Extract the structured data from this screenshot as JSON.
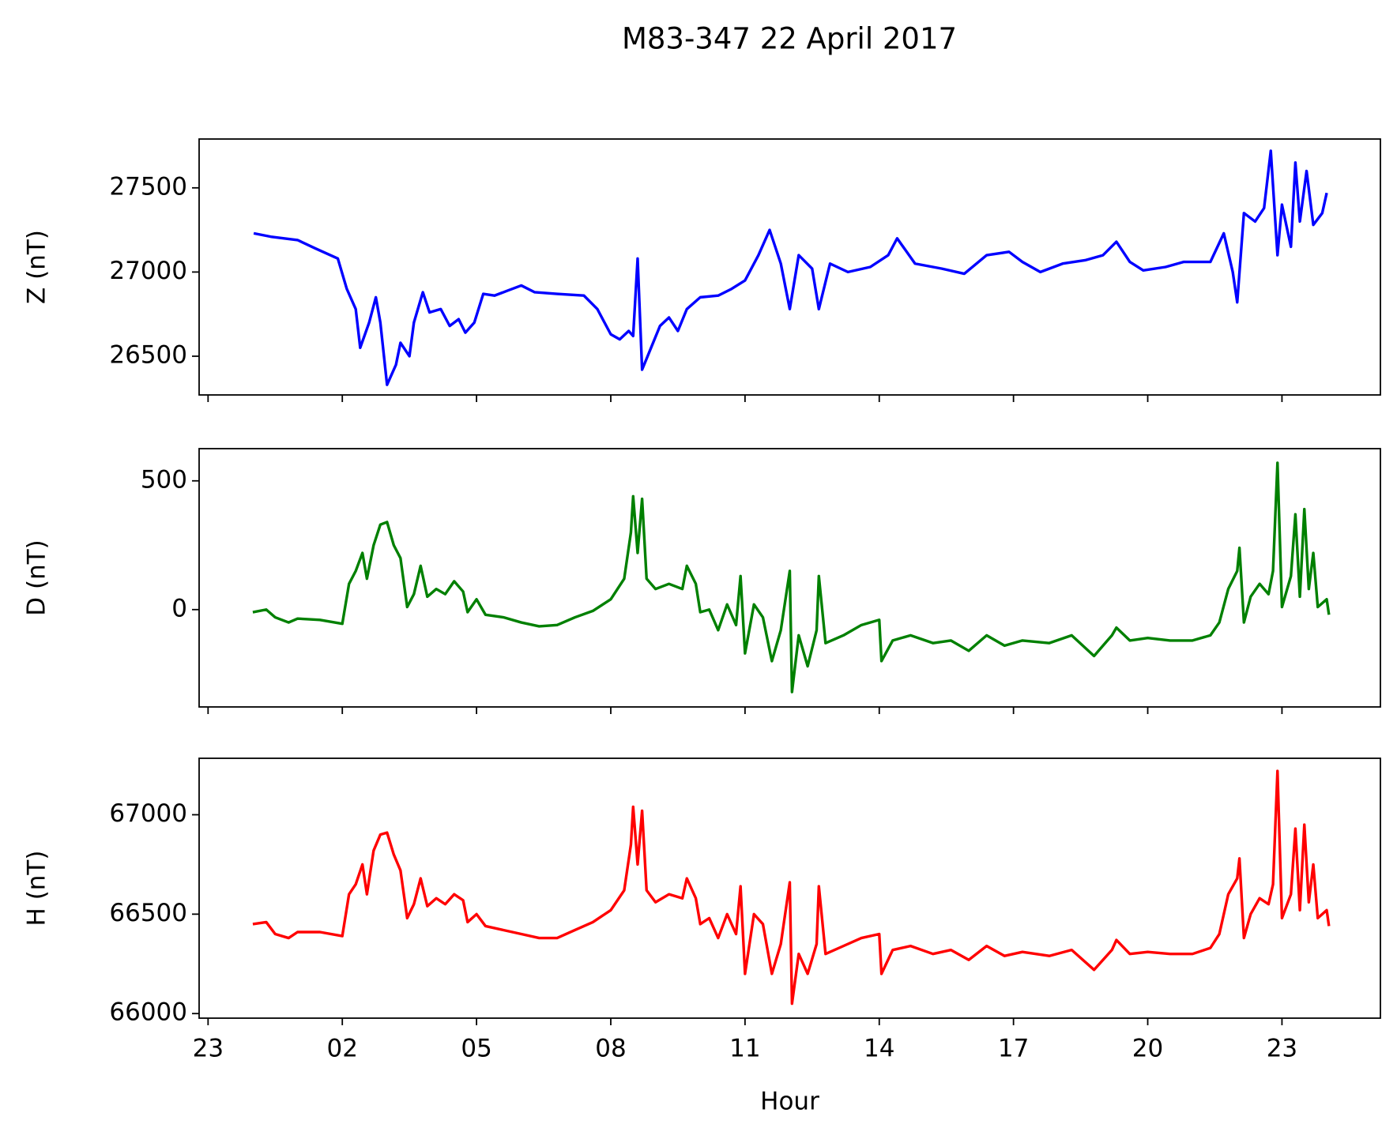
{
  "title": "M83-347 22 April 2017",
  "chart_data": [
    {
      "type": "line",
      "ylabel": "Z (nT)",
      "color": "#0000ff",
      "xlim": [
        -1.2,
        25.2
      ],
      "xticks": [
        {
          "value": -1,
          "label": "23"
        },
        {
          "value": 2,
          "label": "02"
        },
        {
          "value": 5,
          "label": "05"
        },
        {
          "value": 8,
          "label": "08"
        },
        {
          "value": 11,
          "label": "11"
        },
        {
          "value": 14,
          "label": "14"
        },
        {
          "value": 17,
          "label": "17"
        },
        {
          "value": 20,
          "label": "20"
        },
        23
      ],
      "ylim": [
        26270,
        27790
      ],
      "yticks": [
        26500,
        27000,
        27500
      ],
      "x": [
        0.02,
        0.4,
        1.0,
        1.4,
        1.9,
        2.1,
        2.3,
        2.4,
        2.6,
        2.75,
        2.85,
        3.0,
        3.2,
        3.3,
        3.5,
        3.6,
        3.8,
        3.95,
        4.2,
        4.4,
        4.6,
        4.75,
        4.95,
        5.15,
        5.4,
        5.7,
        6.0,
        6.3,
        6.8,
        7.4,
        7.7,
        8.0,
        8.2,
        8.4,
        8.5,
        8.6,
        8.7,
        8.9,
        9.1,
        9.3,
        9.5,
        9.7,
        10.0,
        10.4,
        10.7,
        11.0,
        11.3,
        11.55,
        11.8,
        12.0,
        12.2,
        12.5,
        12.65,
        12.9,
        13.3,
        13.8,
        14.2,
        14.4,
        14.8,
        15.4,
        15.9,
        16.4,
        16.9,
        17.2,
        17.6,
        18.1,
        18.6,
        19.0,
        19.3,
        19.6,
        19.9,
        20.4,
        20.8,
        21.4,
        21.7,
        21.9,
        22.0,
        22.15,
        22.4,
        22.6,
        22.75,
        22.9,
        23.0,
        23.2,
        23.3,
        23.4,
        23.55,
        23.7,
        23.9,
        24.0
      ],
      "values": [
        27230,
        27210,
        27190,
        27140,
        27080,
        26900,
        26780,
        26550,
        26700,
        26850,
        26700,
        26330,
        26450,
        26580,
        26500,
        26700,
        26880,
        26760,
        26780,
        26680,
        26720,
        26640,
        26700,
        26870,
        26860,
        26890,
        26920,
        26880,
        26870,
        26860,
        26780,
        26630,
        26600,
        26650,
        26620,
        27080,
        26420,
        26550,
        26680,
        26730,
        26650,
        26780,
        26850,
        26860,
        26900,
        26950,
        27100,
        27250,
        27050,
        26780,
        27100,
        27020,
        26780,
        27050,
        27000,
        27030,
        27100,
        27200,
        27050,
        27020,
        26990,
        27100,
        27120,
        27060,
        27000,
        27050,
        27070,
        27100,
        27180,
        27060,
        27010,
        27030,
        27060,
        27060,
        27230,
        27000,
        26820,
        27350,
        27300,
        27380,
        27720,
        27100,
        27400,
        27150,
        27650,
        27300,
        27600,
        27280,
        27350,
        27470
      ]
    },
    {
      "type": "line",
      "ylabel": "D (nT)",
      "color": "#008000",
      "xlim": [
        -1.2,
        25.2
      ],
      "xticks": [
        {
          "value": -1,
          "label": "23"
        },
        {
          "value": 2,
          "label": "02"
        },
        {
          "value": 5,
          "label": "05"
        },
        {
          "value": 8,
          "label": "08"
        },
        {
          "value": 11,
          "label": "11"
        },
        {
          "value": 14,
          "label": "14"
        },
        {
          "value": 17,
          "label": "17"
        },
        {
          "value": 20,
          "label": "20"
        },
        23
      ],
      "ylim": [
        -378,
        625
      ],
      "yticks": [
        0,
        500
      ],
      "x": [
        0.0,
        0.3,
        0.5,
        0.8,
        1.0,
        1.5,
        2.0,
        2.15,
        2.3,
        2.45,
        2.55,
        2.7,
        2.85,
        3.0,
        3.15,
        3.3,
        3.45,
        3.6,
        3.75,
        3.9,
        4.1,
        4.3,
        4.5,
        4.7,
        4.8,
        5.0,
        5.2,
        5.6,
        6.0,
        6.4,
        6.8,
        7.2,
        7.6,
        8.0,
        8.3,
        8.45,
        8.5,
        8.6,
        8.7,
        8.8,
        9.0,
        9.3,
        9.6,
        9.7,
        9.9,
        10.0,
        10.2,
        10.4,
        10.6,
        10.8,
        10.9,
        11.0,
        11.2,
        11.4,
        11.6,
        11.8,
        12.0,
        12.05,
        12.2,
        12.4,
        12.6,
        12.65,
        12.8,
        13.2,
        13.6,
        14.0,
        14.05,
        14.3,
        14.7,
        15.2,
        15.6,
        16.0,
        16.4,
        16.8,
        17.2,
        17.8,
        18.3,
        18.8,
        19.2,
        19.3,
        19.6,
        20.0,
        20.5,
        21.0,
        21.4,
        21.6,
        21.8,
        22.0,
        22.05,
        22.15,
        22.3,
        22.5,
        22.7,
        22.8,
        22.9,
        23.0,
        23.2,
        23.3,
        23.4,
        23.5,
        23.6,
        23.7,
        23.8,
        24.0,
        24.05
      ],
      "values": [
        -10,
        0,
        -30,
        -50,
        -35,
        -40,
        -55,
        100,
        150,
        220,
        120,
        250,
        330,
        340,
        250,
        200,
        10,
        60,
        170,
        50,
        80,
        60,
        110,
        70,
        -10,
        40,
        -20,
        -30,
        -50,
        -65,
        -60,
        -30,
        -5,
        40,
        120,
        300,
        440,
        220,
        430,
        120,
        80,
        100,
        80,
        170,
        100,
        -10,
        0,
        -80,
        20,
        -60,
        130,
        -170,
        20,
        -30,
        -200,
        -80,
        150,
        -320,
        -100,
        -220,
        -80,
        130,
        -130,
        -100,
        -60,
        -40,
        -200,
        -120,
        -100,
        -130,
        -120,
        -160,
        -100,
        -140,
        -120,
        -130,
        -100,
        -180,
        -100,
        -70,
        -120,
        -110,
        -120,
        -120,
        -100,
        -50,
        80,
        150,
        240,
        -50,
        50,
        100,
        60,
        150,
        570,
        10,
        130,
        370,
        50,
        390,
        80,
        220,
        10,
        40,
        -20
      ]
    },
    {
      "type": "line",
      "ylabel": "H (nT)",
      "xlabel": "Hour",
      "color": "#ff0000",
      "xlim": [
        -1.2,
        25.2
      ],
      "xticks": [
        {
          "value": -1,
          "label": "23"
        },
        {
          "value": 2,
          "label": "02"
        },
        {
          "value": 5,
          "label": "05"
        },
        {
          "value": 8,
          "label": "08"
        },
        {
          "value": 11,
          "label": "11"
        },
        {
          "value": 14,
          "label": "14"
        },
        {
          "value": 17,
          "label": "17"
        },
        {
          "value": 20,
          "label": "20"
        },
        23
      ],
      "ylim": [
        65977,
        67284
      ],
      "yticks": [
        66000,
        66500,
        67000
      ],
      "x": [
        0.0,
        0.3,
        0.5,
        0.8,
        1.0,
        1.5,
        2.0,
        2.15,
        2.3,
        2.45,
        2.55,
        2.7,
        2.85,
        3.0,
        3.15,
        3.3,
        3.45,
        3.6,
        3.75,
        3.9,
        4.1,
        4.3,
        4.5,
        4.7,
        4.8,
        5.0,
        5.2,
        5.6,
        6.0,
        6.4,
        6.8,
        7.2,
        7.6,
        8.0,
        8.3,
        8.45,
        8.5,
        8.6,
        8.7,
        8.8,
        9.0,
        9.3,
        9.6,
        9.7,
        9.9,
        10.0,
        10.2,
        10.4,
        10.6,
        10.8,
        10.9,
        11.0,
        11.2,
        11.4,
        11.6,
        11.8,
        12.0,
        12.05,
        12.2,
        12.4,
        12.6,
        12.65,
        12.8,
        13.2,
        13.6,
        14.0,
        14.05,
        14.3,
        14.7,
        15.2,
        15.6,
        16.0,
        16.4,
        16.8,
        17.2,
        17.8,
        18.3,
        18.8,
        19.2,
        19.3,
        19.6,
        20.0,
        20.5,
        21.0,
        21.4,
        21.6,
        21.8,
        22.0,
        22.05,
        22.15,
        22.3,
        22.5,
        22.7,
        22.8,
        22.9,
        23.0,
        23.2,
        23.3,
        23.4,
        23.5,
        23.6,
        23.7,
        23.8,
        24.0,
        24.05
      ],
      "values": [
        66450,
        66460,
        66400,
        66380,
        66410,
        66410,
        66390,
        66600,
        66650,
        66750,
        66600,
        66820,
        66900,
        66910,
        66800,
        66720,
        66480,
        66550,
        66680,
        66540,
        66580,
        66550,
        66600,
        66570,
        66460,
        66500,
        66440,
        66420,
        66400,
        66380,
        66380,
        66420,
        66460,
        66520,
        66620,
        66850,
        67040,
        66750,
        67020,
        66620,
        66560,
        66600,
        66580,
        66680,
        66580,
        66450,
        66480,
        66380,
        66500,
        66400,
        66640,
        66200,
        66500,
        66450,
        66200,
        66350,
        66660,
        66050,
        66300,
        66200,
        66350,
        66640,
        66300,
        66340,
        66380,
        66400,
        66200,
        66320,
        66340,
        66300,
        66320,
        66270,
        66340,
        66290,
        66310,
        66290,
        66320,
        66220,
        66320,
        66370,
        66300,
        66310,
        66300,
        66300,
        66330,
        66400,
        66600,
        66680,
        66780,
        66380,
        66500,
        66580,
        66550,
        66650,
        67220,
        66480,
        66600,
        66930,
        66520,
        66950,
        66560,
        66750,
        66480,
        66520,
        66440
      ]
    }
  ]
}
